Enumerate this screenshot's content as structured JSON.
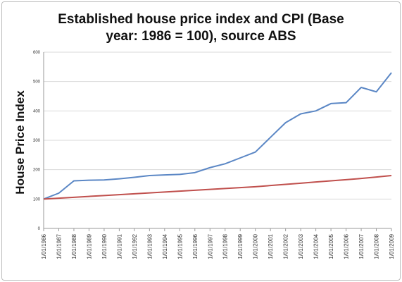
{
  "chart_data": {
    "type": "line",
    "title_line1": "Established house price index and CPI (Base",
    "title_line2": "year: 1986 = 100), source ABS",
    "xlabel": "",
    "ylabel": "House Price Index",
    "ylim": [
      0,
      600
    ],
    "yticks": [
      0,
      100,
      200,
      300,
      400,
      500,
      600
    ],
    "grid": "horizontal",
    "legend": "none",
    "categories": [
      "1/01/1986",
      "1/01/1987",
      "1/01/1988",
      "1/01/1989",
      "1/01/1990",
      "1/01/1991",
      "1/01/1992",
      "1/01/1993",
      "1/01/1994",
      "1/01/1995",
      "1/01/1996",
      "1/01/1997",
      "1/01/1998",
      "1/01/1999",
      "1/01/2000",
      "1/01/2001",
      "1/01/2002",
      "1/01/2003",
      "1/01/2004",
      "1/01/2005",
      "1/01/2006",
      "1/01/2007",
      "1/01/2008",
      "1/01/2009"
    ],
    "series": [
      {
        "color": "#5b87c5",
        "values": [
          100,
          120,
          162,
          164,
          165,
          169,
          174,
          180,
          182,
          184,
          190,
          207,
          220,
          240,
          260,
          310,
          360,
          390,
          400,
          425,
          428,
          480,
          465,
          530
        ]
      },
      {
        "color": "#c0504d",
        "values": [
          100,
          103,
          106,
          109,
          112,
          115,
          118,
          121,
          124,
          127,
          130,
          133,
          136,
          139,
          142,
          146,
          150,
          154,
          158,
          162,
          166,
          170,
          175,
          180
        ]
      }
    ]
  }
}
